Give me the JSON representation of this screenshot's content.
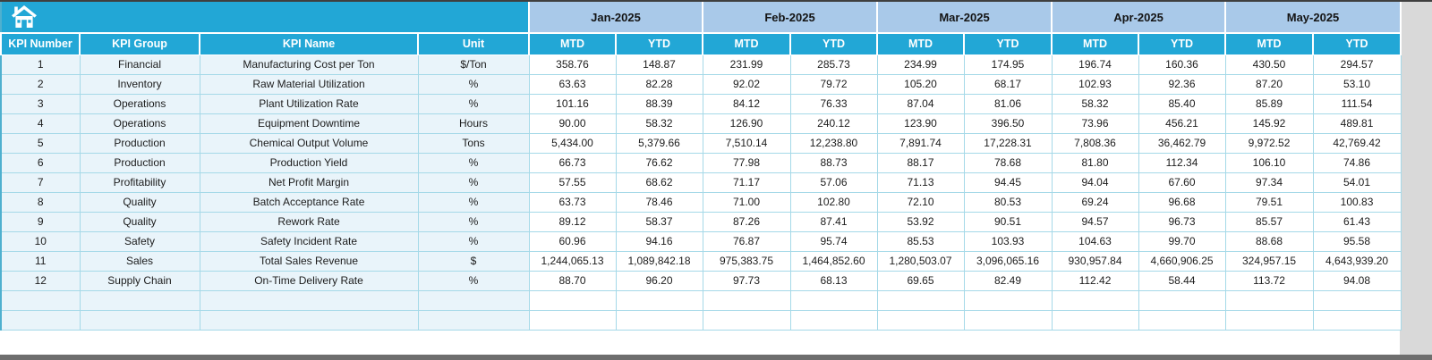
{
  "table": {
    "corner_icon": "home-icon",
    "label_headers": [
      "KPI Number",
      "KPI Group",
      "KPI Name",
      "Unit"
    ],
    "months": [
      "Jan-2025",
      "Feb-2025",
      "Mar-2025",
      "Apr-2025",
      "May-2025"
    ],
    "sub_headers": [
      "MTD",
      "YTD"
    ],
    "rows": [
      {
        "number": "1",
        "group": "Financial",
        "name": "Manufacturing Cost per Ton",
        "unit": "$/Ton",
        "values": [
          "358.76",
          "148.87",
          "231.99",
          "285.73",
          "234.99",
          "174.95",
          "196.74",
          "160.36",
          "430.50",
          "294.57"
        ]
      },
      {
        "number": "2",
        "group": "Inventory",
        "name": "Raw Material Utilization",
        "unit": "%",
        "values": [
          "63.63",
          "82.28",
          "92.02",
          "79.72",
          "105.20",
          "68.17",
          "102.93",
          "92.36",
          "87.20",
          "53.10"
        ]
      },
      {
        "number": "3",
        "group": "Operations",
        "name": "Plant Utilization Rate",
        "unit": "%",
        "values": [
          "101.16",
          "88.39",
          "84.12",
          "76.33",
          "87.04",
          "81.06",
          "58.32",
          "85.40",
          "85.89",
          "111.54"
        ]
      },
      {
        "number": "4",
        "group": "Operations",
        "name": "Equipment Downtime",
        "unit": "Hours",
        "values": [
          "90.00",
          "58.32",
          "126.90",
          "240.12",
          "123.90",
          "396.50",
          "73.96",
          "456.21",
          "145.92",
          "489.81"
        ]
      },
      {
        "number": "5",
        "group": "Production",
        "name": "Chemical Output Volume",
        "unit": "Tons",
        "values": [
          "5,434.00",
          "5,379.66",
          "7,510.14",
          "12,238.80",
          "7,891.74",
          "17,228.31",
          "7,808.36",
          "36,462.79",
          "9,972.52",
          "42,769.42"
        ]
      },
      {
        "number": "6",
        "group": "Production",
        "name": "Production Yield",
        "unit": "%",
        "values": [
          "66.73",
          "76.62",
          "77.98",
          "88.73",
          "88.17",
          "78.68",
          "81.80",
          "112.34",
          "106.10",
          "74.86"
        ]
      },
      {
        "number": "7",
        "group": "Profitability",
        "name": "Net Profit Margin",
        "unit": "%",
        "values": [
          "57.55",
          "68.62",
          "71.17",
          "57.06",
          "71.13",
          "94.45",
          "94.04",
          "67.60",
          "97.34",
          "54.01"
        ]
      },
      {
        "number": "8",
        "group": "Quality",
        "name": "Batch Acceptance Rate",
        "unit": "%",
        "values": [
          "63.73",
          "78.46",
          "71.00",
          "102.80",
          "72.10",
          "80.53",
          "69.24",
          "96.68",
          "79.51",
          "100.83"
        ]
      },
      {
        "number": "9",
        "group": "Quality",
        "name": "Rework Rate",
        "unit": "%",
        "values": [
          "89.12",
          "58.37",
          "87.26",
          "87.41",
          "53.92",
          "90.51",
          "94.57",
          "96.73",
          "85.57",
          "61.43"
        ]
      },
      {
        "number": "10",
        "group": "Safety",
        "name": "Safety Incident Rate",
        "unit": "%",
        "values": [
          "60.96",
          "94.16",
          "76.87",
          "95.74",
          "85.53",
          "103.93",
          "104.63",
          "99.70",
          "88.68",
          "95.58"
        ]
      },
      {
        "number": "11",
        "group": "Sales",
        "name": "Total Sales Revenue",
        "unit": "$",
        "values": [
          "1,244,065.13",
          "1,089,842.18",
          "975,383.75",
          "1,464,852.60",
          "1,280,503.07",
          "3,096,065.16",
          "930,957.84",
          "4,660,906.25",
          "324,957.15",
          "4,643,939.20"
        ]
      },
      {
        "number": "12",
        "group": "Supply Chain",
        "name": "On-Time Delivery Rate",
        "unit": "%",
        "values": [
          "88.70",
          "96.20",
          "97.73",
          "68.13",
          "69.65",
          "82.49",
          "112.42",
          "58.44",
          "113.72",
          "94.08"
        ]
      }
    ],
    "empty_row_count": 2
  },
  "colors": {
    "header_teal": "#22a7d6",
    "month_blue": "#a9c9e9",
    "row_blue": "#e9f4fa",
    "gridline_teal": "#a5d9e8",
    "frame_dark_top": "#3f3f3f",
    "frame_dark_bottom": "#6e6e6e",
    "side_gray": "#d9d9d9",
    "header_text": "#ffffff",
    "body_text": "#1c1c1c"
  }
}
